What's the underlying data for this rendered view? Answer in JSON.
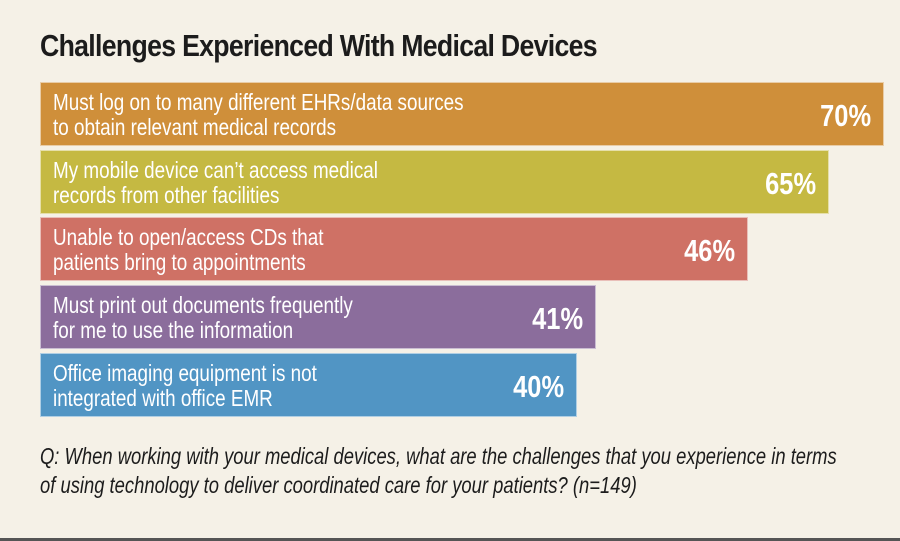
{
  "chart_data": {
    "type": "bar",
    "orientation": "horizontal",
    "title": "Challenges Experienced With Medical Devices",
    "categories": [
      "Must log on to many different EHRs/data sources\nto obtain relevant medical records",
      "My mobile device can’t access medical\nrecords from other facilities",
      "Unable to open/access CDs that\npatients bring to appointments",
      "Must print out documents frequently\nfor me to use the information",
      "Office imaging equipment is not\nintegrated with office EMR"
    ],
    "values": [
      70,
      65,
      46,
      41,
      40
    ],
    "value_labels": [
      "70%",
      "65%",
      "46%",
      "41%",
      "40%"
    ],
    "colors": [
      "#cf8f3a",
      "#c5b942",
      "#cf7165",
      "#8b6d9c",
      "#5195c4"
    ],
    "xlabel": "",
    "ylabel": "",
    "unit": "%",
    "grid": false,
    "legend": "none",
    "footnote": "Q:  When working with your medical devices, what are the challenges that you experience in terms of using technology to deliver coordinated care for your patients? (n=149)"
  }
}
